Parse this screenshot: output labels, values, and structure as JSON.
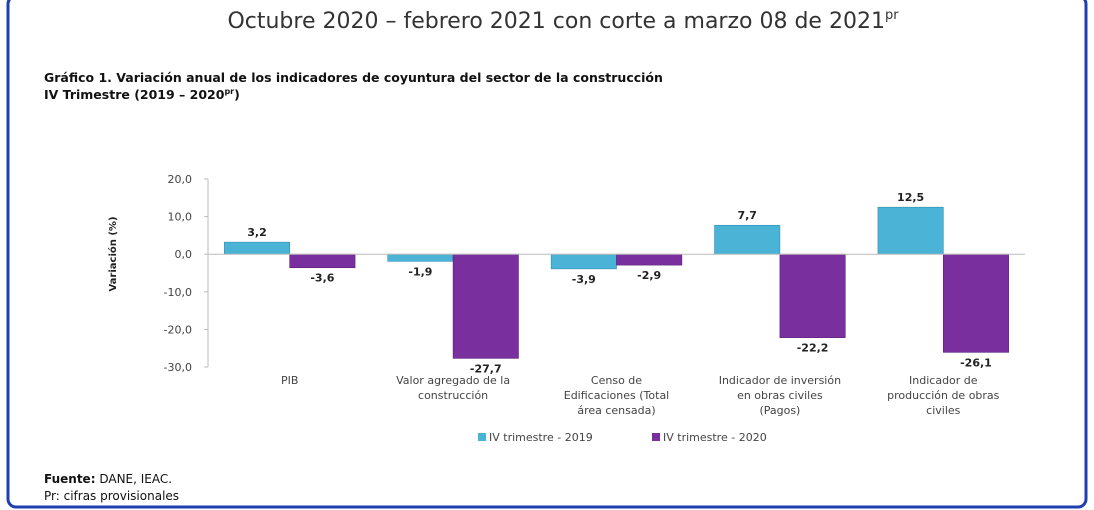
{
  "header": {
    "title": "Octubre 2020 – febrero 2021 con corte a marzo 08 de 2021",
    "title_sup": "pr"
  },
  "chart_data": {
    "type": "bar",
    "title": "Gráfico 1. Variación anual de los indicadores de coyuntura del sector de la construcción",
    "subtitle": "IV Trimestre (2019 – 2020",
    "subtitle_sup": "pr",
    "subtitle_end": ")",
    "y_label": "Variación (%)",
    "categories": [
      [
        "PIB"
      ],
      [
        "Valor agregado de la",
        "construcción"
      ],
      [
        "Censo de",
        "Edificaciones (Total",
        "área censada)"
      ],
      [
        "Indicador de inversión",
        "en obras civiles",
        "(Pagos)"
      ],
      [
        "Indicador de",
        "producción de obras",
        "civiles"
      ]
    ],
    "series": [
      {
        "name": "IV trimestre - 2019",
        "color": "#4bb3d6",
        "values": [
          3.2,
          -1.9,
          -3.9,
          7.7,
          12.5
        ],
        "value_labels": [
          "3,2",
          "-1,9",
          "-3,9",
          "7,7",
          "12,5"
        ]
      },
      {
        "name": "IV trimestre - 2020",
        "color": "#7a2f9e",
        "values": [
          -3.6,
          -27.7,
          -2.9,
          -22.2,
          -26.1
        ],
        "value_labels": [
          "-3,6",
          "-27,7",
          "-2,9",
          "-22,2",
          "-26,1"
        ]
      }
    ],
    "ylim": [
      -30,
      20
    ],
    "yticks": [
      {
        "value": 20,
        "label": "20,0"
      },
      {
        "value": 10,
        "label": "10,0"
      },
      {
        "value": 0,
        "label": "0,0"
      },
      {
        "value": -10,
        "label": "-10,0"
      },
      {
        "value": -20,
        "label": "-20,0"
      },
      {
        "value": -30,
        "label": "-30,0"
      }
    ],
    "legend": "bottom"
  },
  "footer": {
    "source_label": "Fuente:",
    "source": "DANE, IEAC.",
    "note": "Pr: cifras provisionales"
  }
}
